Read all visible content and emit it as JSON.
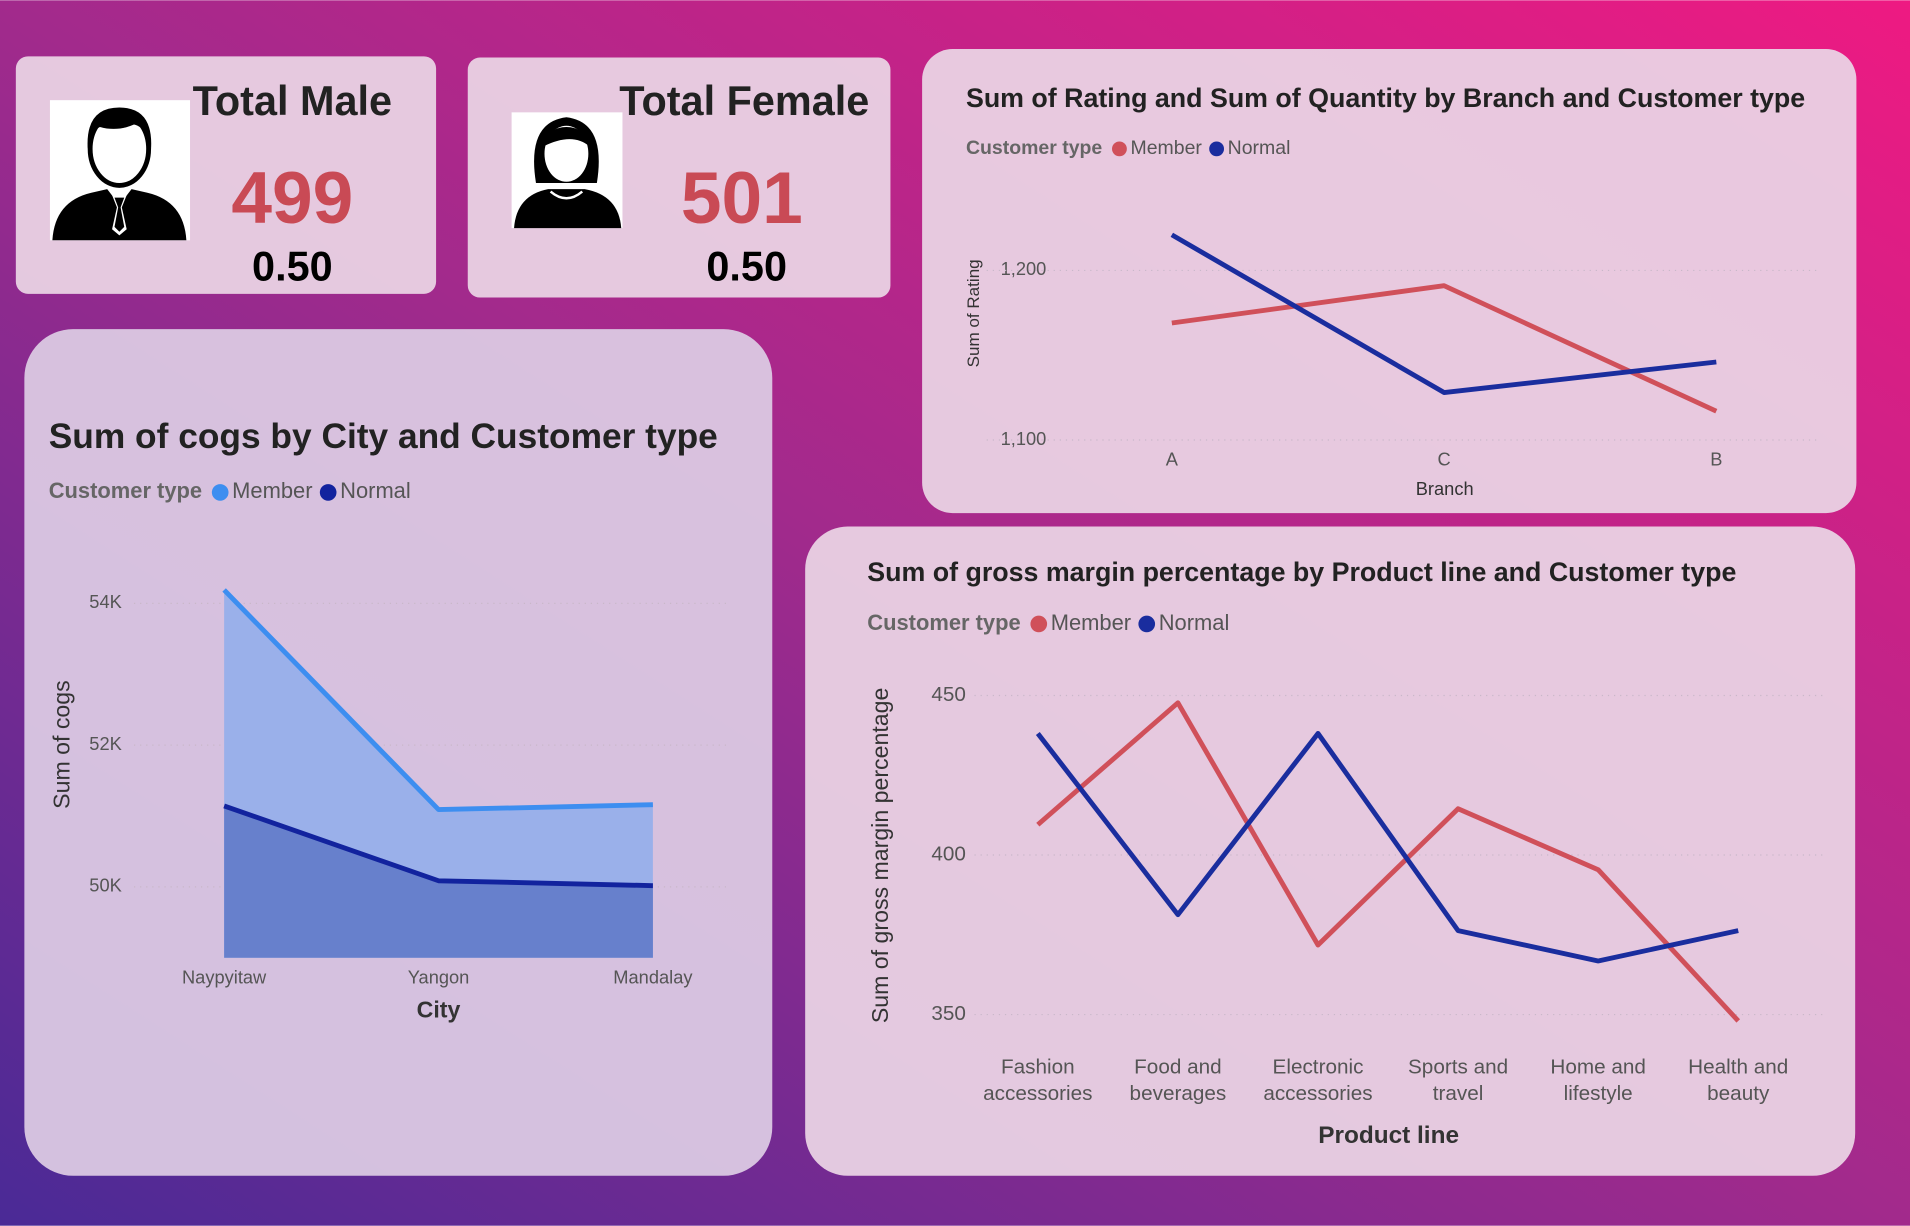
{
  "cards": [
    {
      "title": "Total Male",
      "value": 499,
      "share": "0.50"
    },
    {
      "title": "Total Female",
      "value": 501,
      "share": "0.50"
    }
  ],
  "chart_data": [
    {
      "type": "line",
      "title": "Sum of Rating and Sum of Quantity by Branch and Customer type",
      "legend_title": "Customer type",
      "x_label": "Branch",
      "y_label": "Sum of Rating",
      "categories": [
        "A",
        "C",
        "B"
      ],
      "series": [
        {
          "name": "Member",
          "color": "#d0505a",
          "values": [
            1169,
            1191,
            1117
          ]
        },
        {
          "name": "Normal",
          "color": "#1a2d9e",
          "values": [
            1221,
            1128,
            1146
          ]
        }
      ],
      "ylim": [
        1100,
        1230
      ],
      "yticks": [
        {
          "value": 1100,
          "label": "1,100"
        },
        {
          "value": 1200,
          "label": "1,200"
        }
      ],
      "grid": true
    },
    {
      "type": "area",
      "title": "Sum of cogs by City and Customer type",
      "legend_title": "Customer type",
      "x_label": "City",
      "y_label": "Sum of cogs",
      "categories": [
        "Naypyitaw",
        "Yangon",
        "Mandalay"
      ],
      "series": [
        {
          "name": "Member",
          "color": "#3d8ef0",
          "fill": "#9ab0ea",
          "values": [
            54189,
            51090,
            51159
          ]
        },
        {
          "name": "Normal",
          "color": "#12239e",
          "fill": "#6780cc",
          "values": [
            51142,
            50086,
            50017
          ]
        }
      ],
      "ylim": [
        49000,
        54500
      ],
      "yticks": [
        {
          "value": 50000,
          "label": "50K"
        },
        {
          "value": 52000,
          "label": "52K"
        },
        {
          "value": 54000,
          "label": "54K"
        }
      ],
      "grid": true
    },
    {
      "type": "line",
      "title": "Sum of gross margin percentage by Product line and Customer type",
      "legend_title": "Customer type",
      "x_label": "Product line",
      "y_label": "Sum of gross margin percentage",
      "categories": [
        "Fashion accessories",
        "Food and beverages",
        "Electronic accessories",
        "Sports and travel",
        "Home and lifestyle",
        "Health and beauty"
      ],
      "series": [
        {
          "name": "Member",
          "color": "#d0505a",
          "values": [
            409.5,
            447.7,
            371.8,
            414.5,
            395.4,
            348.0
          ]
        },
        {
          "name": "Normal",
          "color": "#1a2d9e",
          "values": [
            438.1,
            381.3,
            438.1,
            376.3,
            366.8,
            376.3
          ]
        }
      ],
      "ylim": [
        343,
        456
      ],
      "yticks": [
        350,
        400,
        450
      ],
      "grid": true
    }
  ]
}
